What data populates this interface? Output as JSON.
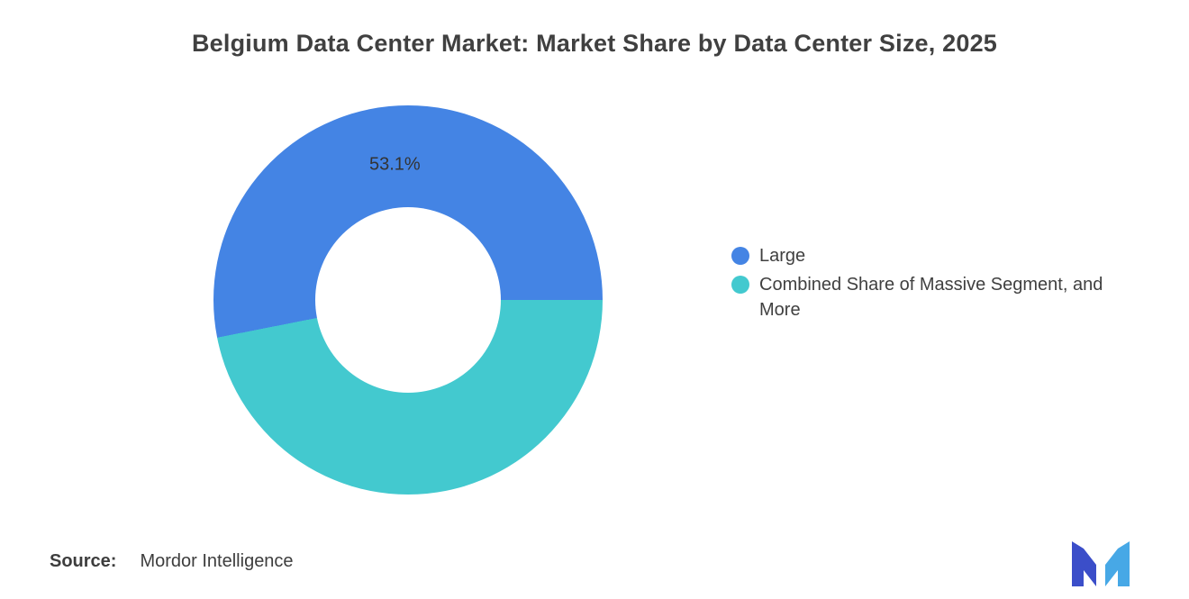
{
  "title": "Belgium Data Center Market: Market Share by Data Center Size, 2025",
  "legend": [
    {
      "label": "Large",
      "color": "#4484E4"
    },
    {
      "label": "Combined Share of Massive Segment, and More",
      "color": "#43C9CF"
    }
  ],
  "source": {
    "label": "Source:",
    "value": "Mordor Intelligence"
  },
  "logo": {
    "name": "mordor-intelligence-logo",
    "color_left": "#3B4EC9",
    "color_right": "#47A8E6"
  },
  "chart_data": {
    "type": "pie",
    "donut": true,
    "title": "Belgium Data Center Market: Market Share by Data Center Size, 2025",
    "labels": [
      "Large",
      "Combined Share of Massive Segment, and More"
    ],
    "values": [
      53.1,
      46.9
    ],
    "colors": [
      "#4484E4",
      "#43C9CF"
    ],
    "data_labels": [
      "53.1%",
      ""
    ],
    "legend_position": "right",
    "inner_radius_pct": 47
  }
}
